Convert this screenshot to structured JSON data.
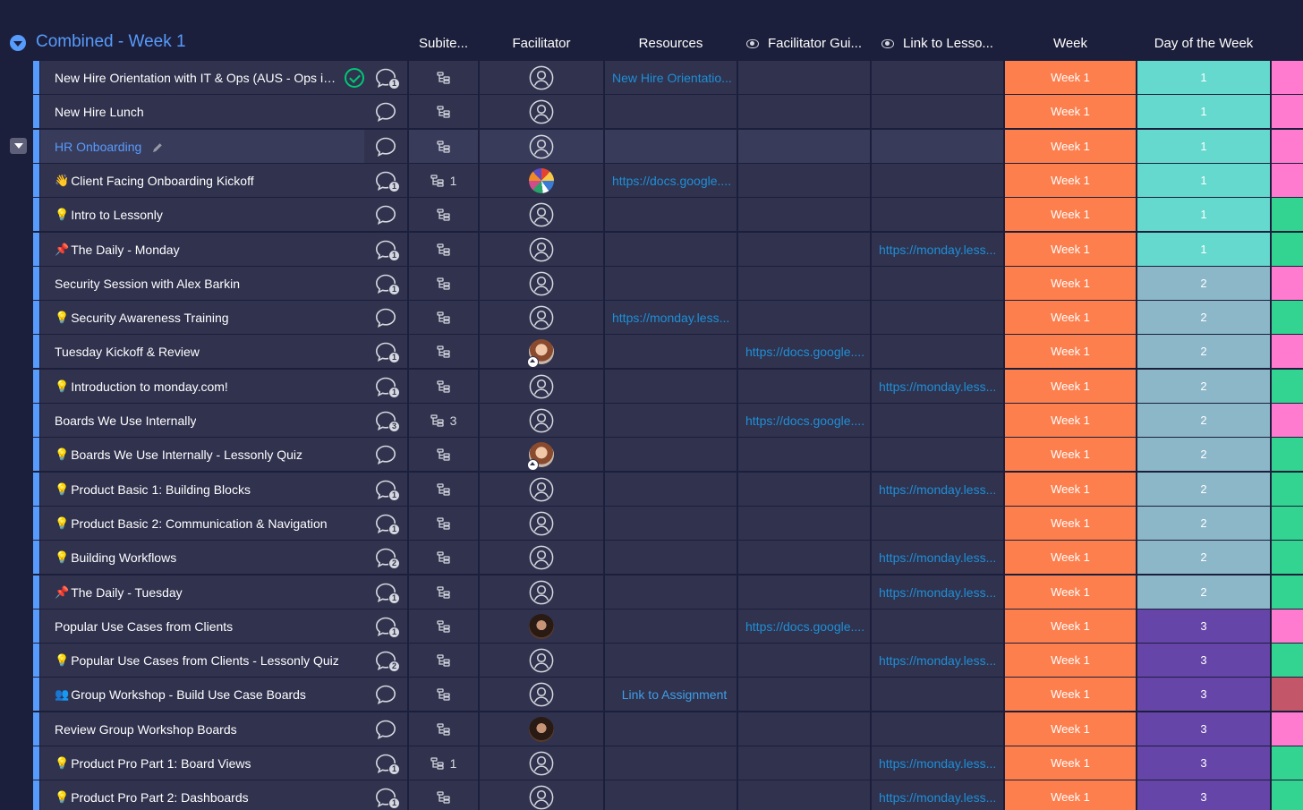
{
  "group": {
    "title": "Combined - Week 1",
    "color": "#579bfc"
  },
  "columns": {
    "subitems": "Subite...",
    "facilitator": "Facilitator",
    "resources": "Resources",
    "facilitator_guide": "Facilitator Gui...",
    "link_to_lesson": "Link to Lesso...",
    "week": "Week",
    "day_of_week": "Day of the Week"
  },
  "colors": {
    "week": "#fd7f4e",
    "day_1": "#66d9cf",
    "day_2": "#8bb7c9",
    "day_3": "#6645a9",
    "pink": "#ff7bd0",
    "green": "#33d391",
    "rose": "#c4566a"
  },
  "rows": [
    {
      "name": "New Hire Orientation with IT & Ops (AUS - Ops in ...",
      "emoji": "",
      "check": true,
      "conv": 1,
      "sub": "",
      "fac": "empty",
      "res": "New Hire Orientatio...",
      "gui": "",
      "les": "",
      "week": "Week 1",
      "day": "1",
      "day_color": "day_1",
      "last": "pink"
    },
    {
      "name": "New Hire Lunch",
      "emoji": "",
      "conv": 0,
      "sub": "",
      "fac": "empty",
      "res": "",
      "gui": "",
      "les": "",
      "week": "Week 1",
      "day": "1",
      "day_color": "day_1",
      "last": "pink"
    },
    {
      "name": "HR Onboarding",
      "emoji": "",
      "link": true,
      "pencil": true,
      "expand": true,
      "conv": 0,
      "sub": "",
      "fac": "empty",
      "res": "",
      "gui": "",
      "les": "",
      "week": "Week 1",
      "day": "1",
      "day_color": "day_1",
      "last": "pink"
    },
    {
      "name": "Client Facing Onboarding Kickoff",
      "emoji": "wave",
      "conv": 1,
      "sub": "1",
      "fac": "group",
      "res": "https://docs.google....",
      "gui": "",
      "les": "",
      "week": "Week 1",
      "day": "1",
      "day_color": "day_1",
      "last": "pink"
    },
    {
      "name": "Intro to Lessonly",
      "emoji": "bulb",
      "conv": 0,
      "sub": "",
      "fac": "empty",
      "res": "",
      "gui": "",
      "les": "",
      "week": "Week 1",
      "day": "1",
      "day_color": "day_1",
      "last": "green"
    },
    {
      "name": "The Daily - Monday",
      "emoji": "pin",
      "conv": 1,
      "sub": "",
      "fac": "empty",
      "res": "",
      "gui": "",
      "les": "https://monday.less...",
      "week": "Week 1",
      "day": "1",
      "day_color": "day_1",
      "last": "green"
    },
    {
      "name": "Security Session with Alex Barkin",
      "emoji": "",
      "conv": 1,
      "sub": "",
      "fac": "empty",
      "res": "",
      "gui": "",
      "les": "",
      "week": "Week 1",
      "day": "2",
      "day_color": "day_2",
      "last": "pink"
    },
    {
      "name": "Security Awareness Training",
      "emoji": "bulb",
      "conv": 0,
      "sub": "",
      "fac": "empty",
      "res": "https://monday.less...",
      "gui": "",
      "les": "",
      "week": "Week 1",
      "day": "2",
      "day_color": "day_2",
      "last": "green"
    },
    {
      "name": "Tuesday Kickoff & Review",
      "emoji": "",
      "conv": 1,
      "sub": "",
      "fac": "photo1",
      "res": "",
      "gui": "https://docs.google....",
      "les": "",
      "week": "Week 1",
      "day": "2",
      "day_color": "day_2",
      "last": "pink"
    },
    {
      "name": "Introduction to monday.com!",
      "emoji": "bulb",
      "conv": 1,
      "sub": "",
      "fac": "empty",
      "res": "",
      "gui": "",
      "les": "https://monday.less...",
      "week": "Week 1",
      "day": "2",
      "day_color": "day_2",
      "last": "green"
    },
    {
      "name": "Boards We Use Internally",
      "emoji": "",
      "conv": 3,
      "sub": "3",
      "fac": "empty",
      "res": "",
      "gui": "https://docs.google....",
      "les": "",
      "week": "Week 1",
      "day": "2",
      "day_color": "day_2",
      "last": "pink"
    },
    {
      "name": "Boards We Use Internally - Lessonly Quiz",
      "emoji": "bulb",
      "conv": 0,
      "sub": "",
      "fac": "photo1",
      "res": "",
      "gui": "",
      "les": "",
      "week": "Week 1",
      "day": "2",
      "day_color": "day_2",
      "last": "green"
    },
    {
      "name": "Product Basic 1: Building Blocks",
      "emoji": "bulb",
      "conv": 1,
      "sub": "",
      "fac": "empty",
      "res": "",
      "gui": "",
      "les": "https://monday.less...",
      "week": "Week 1",
      "day": "2",
      "day_color": "day_2",
      "last": "green"
    },
    {
      "name": "Product Basic 2: Communication & Navigation",
      "emoji": "bulb",
      "conv": 1,
      "sub": "",
      "fac": "empty",
      "res": "",
      "gui": "",
      "les": "",
      "week": "Week 1",
      "day": "2",
      "day_color": "day_2",
      "last": "green"
    },
    {
      "name": "Building Workflows",
      "emoji": "bulb",
      "conv": 2,
      "sub": "",
      "fac": "empty",
      "res": "",
      "gui": "",
      "les": "https://monday.less...",
      "week": "Week 1",
      "day": "2",
      "day_color": "day_2",
      "last": "green"
    },
    {
      "name": "The Daily - Tuesday",
      "emoji": "pin",
      "conv": 1,
      "sub": "",
      "fac": "empty",
      "res": "",
      "gui": "",
      "les": "https://monday.less...",
      "week": "Week 1",
      "day": "2",
      "day_color": "day_2",
      "last": "green"
    },
    {
      "name": "Popular Use Cases from Clients",
      "emoji": "",
      "conv": 1,
      "sub": "",
      "fac": "photo2",
      "res": "",
      "gui": "https://docs.google....",
      "les": "",
      "week": "Week 1",
      "day": "3",
      "day_color": "day_3",
      "last": "pink"
    },
    {
      "name": "Popular Use Cases from Clients - Lessonly Quiz",
      "emoji": "bulb",
      "conv": 2,
      "sub": "",
      "fac": "empty",
      "res": "",
      "gui": "",
      "les": "https://monday.less...",
      "week": "Week 1",
      "day": "3",
      "day_color": "day_3",
      "last": "green"
    },
    {
      "name": "Group Workshop - Build Use Case Boards",
      "emoji": "people",
      "conv": 0,
      "sub": "",
      "fac": "empty",
      "res": "Link to Assignment",
      "res_center": true,
      "gui": "",
      "les": "",
      "week": "Week 1",
      "day": "3",
      "day_color": "day_3",
      "last": "rose"
    },
    {
      "name": "Review Group Workshop Boards",
      "emoji": "",
      "conv": 0,
      "sub": "",
      "fac": "photo2",
      "res": "",
      "gui": "",
      "les": "",
      "week": "Week 1",
      "day": "3",
      "day_color": "day_3",
      "last": "pink"
    },
    {
      "name": "Product Pro Part 1: Board Views",
      "emoji": "bulb",
      "conv": 1,
      "sub": "1",
      "fac": "empty",
      "res": "",
      "gui": "",
      "les": "https://monday.less...",
      "week": "Week 1",
      "day": "3",
      "day_color": "day_3",
      "last": "green"
    },
    {
      "name": "Product Pro Part 2: Dashboards",
      "emoji": "bulb",
      "conv": 1,
      "sub": "",
      "fac": "empty",
      "res": "",
      "gui": "",
      "les": "https://monday.less...",
      "week": "Week 1",
      "day": "3",
      "day_color": "day_3",
      "last": "green"
    }
  ]
}
